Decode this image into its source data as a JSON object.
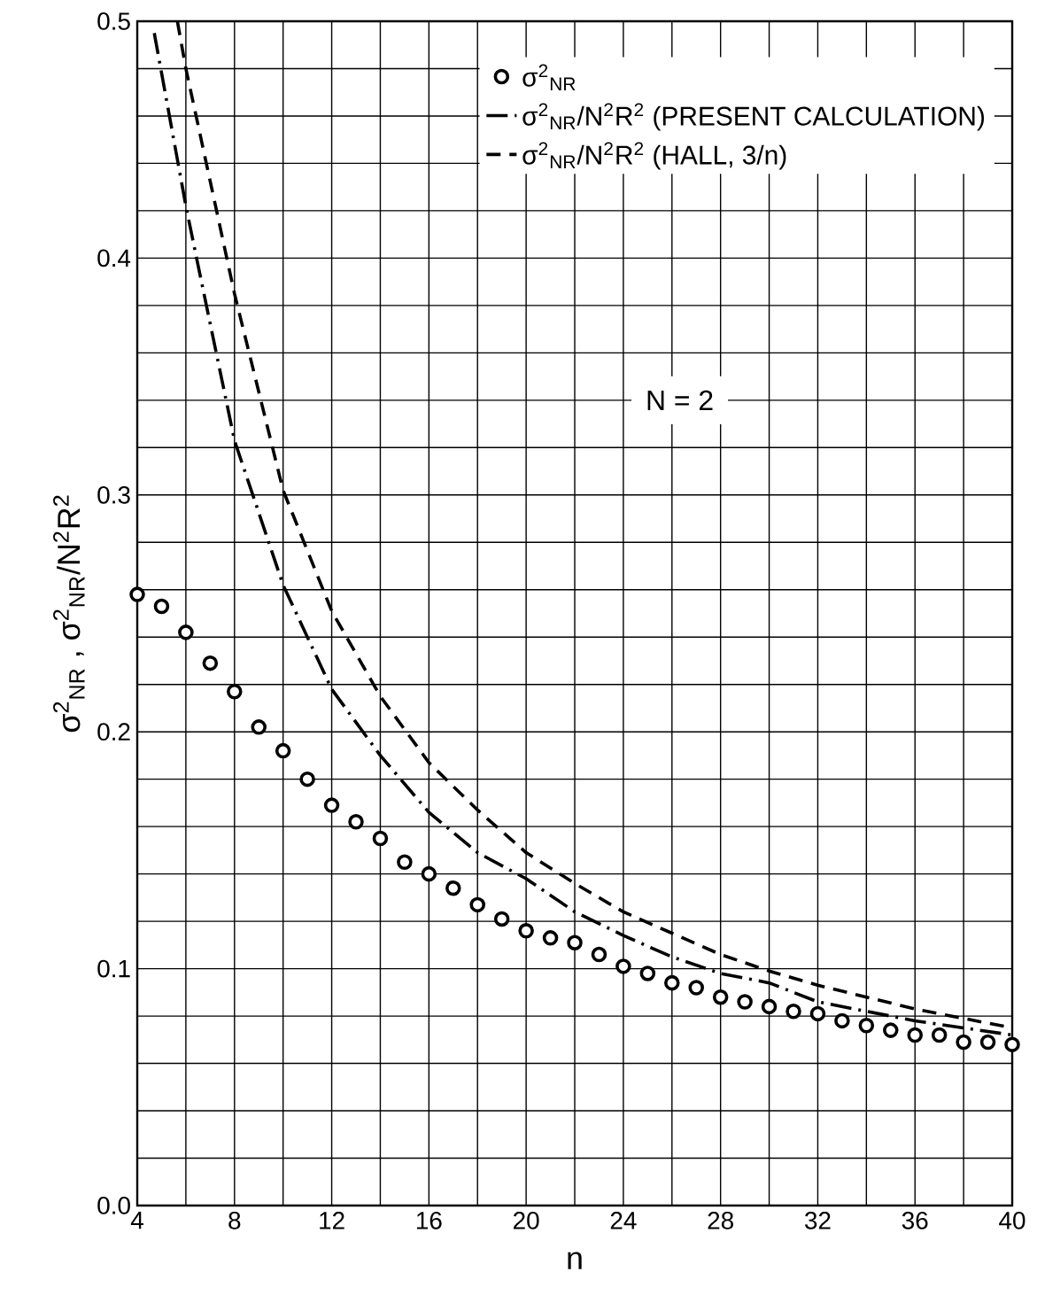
{
  "chart_data": {
    "type": "line",
    "xlabel": "n",
    "ylabel": "σ$^{2}$$_{NR}$ , σ$^{2}$$_{NR}$/N$^{2}$R$^{2}$",
    "annotations": [
      "N = 2"
    ],
    "xlim": [
      4,
      40
    ],
    "xticks": [
      4,
      8,
      12,
      16,
      20,
      24,
      28,
      32,
      36,
      40
    ],
    "ylim": [
      0,
      0.5
    ],
    "yticks": [
      {
        "value": 0,
        "label": "0.0"
      },
      0.1,
      0.2,
      0.3,
      0.4,
      0.5
    ],
    "grid": true,
    "legend": "top right",
    "series": [
      {
        "name": "σ$^{2}$$_{NR}$",
        "type": "scatter",
        "marker": "circle",
        "color": "#000000",
        "x": [
          4,
          5,
          6,
          7,
          8,
          9,
          10,
          11,
          12,
          13,
          14,
          15,
          16,
          17,
          18,
          19,
          20,
          21,
          22,
          23,
          24,
          25,
          26,
          27,
          28,
          29,
          30,
          31,
          32,
          33,
          34,
          35,
          36,
          37,
          38,
          39,
          40
        ],
        "values": [
          0.258,
          0.253,
          0.242,
          0.229,
          0.217,
          0.202,
          0.192,
          0.18,
          0.169,
          0.162,
          0.155,
          0.145,
          0.14,
          0.134,
          0.127,
          0.121,
          0.116,
          0.113,
          0.111,
          0.106,
          0.101,
          0.098,
          0.094,
          0.092,
          0.088,
          0.086,
          0.084,
          0.082,
          0.081,
          0.078,
          0.076,
          0.074,
          0.072,
          0.072,
          0.069,
          0.069,
          0.068
        ]
      },
      {
        "name": "σ$^{2}$$_{NR}$/N$^{2}$R$^{2}$ (PRESENT CALCULATION)",
        "line_style": "dashdot",
        "color": "#000000",
        "x": [
          4.7,
          6,
          6.44,
          8,
          10,
          12,
          14,
          16,
          18,
          20,
          22,
          24,
          26,
          28,
          30,
          32,
          34,
          36,
          38,
          40
        ],
        "values": [
          0.495,
          0.422,
          0.4,
          0.323,
          0.262,
          0.218,
          0.19,
          0.166,
          0.149,
          0.138,
          0.124,
          0.114,
          0.105,
          0.098,
          0.094,
          0.086,
          0.082,
          0.078,
          0.075,
          0.072
        ]
      },
      {
        "name": "σ$^{2}$$_{NR}$/N$^{2}$R$^{2}$ (HALL, 3/n)",
        "line_style": "dashed",
        "color": "#000000",
        "x": [
          5.65,
          6,
          8,
          10,
          12,
          14,
          16,
          18,
          20,
          22,
          24,
          26,
          28,
          30,
          32,
          34,
          36,
          38,
          40
        ],
        "values": [
          0.5,
          0.48,
          0.385,
          0.302,
          0.251,
          0.215,
          0.187,
          0.167,
          0.149,
          0.136,
          0.124,
          0.115,
          0.106,
          0.099,
          0.093,
          0.088,
          0.083,
          0.079,
          0.075
        ]
      }
    ]
  }
}
